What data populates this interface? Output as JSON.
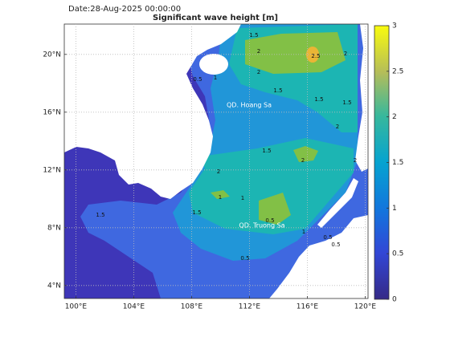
{
  "header": {
    "date": "Date:28-Aug-2025 00:00:00",
    "title": "Significant wave height [m]"
  },
  "map": {
    "xlim": [
      99.2,
      120.2
    ],
    "ylim": [
      3.1,
      22.1
    ],
    "lon_ticks": [
      {
        "value": 100,
        "label": "100°E"
      },
      {
        "value": 104,
        "label": "104°E"
      },
      {
        "value": 108,
        "label": "108°E"
      },
      {
        "value": 112,
        "label": "112°E"
      },
      {
        "value": 116,
        "label": "116°E"
      },
      {
        "value": 120,
        "label": "120°E"
      }
    ],
    "lat_ticks": [
      {
        "value": 4,
        "label": "4°N"
      },
      {
        "value": 8,
        "label": "8°N"
      },
      {
        "value": 12,
        "label": "12°N"
      },
      {
        "value": 16,
        "label": "16°N"
      },
      {
        "value": 20,
        "label": "20°N"
      }
    ],
    "grid": true,
    "places": [
      "QD. Hoang Sa",
      "QD. Truong Sa"
    ],
    "contour_labels": [
      "1.5",
      "2",
      "2",
      "2.5",
      "2",
      "0.5",
      "1",
      "1.5",
      "1.5",
      "1.5",
      "2",
      "1.5",
      "2",
      "2",
      "2",
      "1.5",
      "1",
      "1",
      "0.5",
      "1",
      "0.5",
      "0.5",
      "0.5",
      "1.5"
    ]
  },
  "colorbar": {
    "lim": [
      0,
      3
    ],
    "ticks": [
      0,
      0.5,
      1,
      1.5,
      2,
      2.5,
      3
    ]
  }
}
